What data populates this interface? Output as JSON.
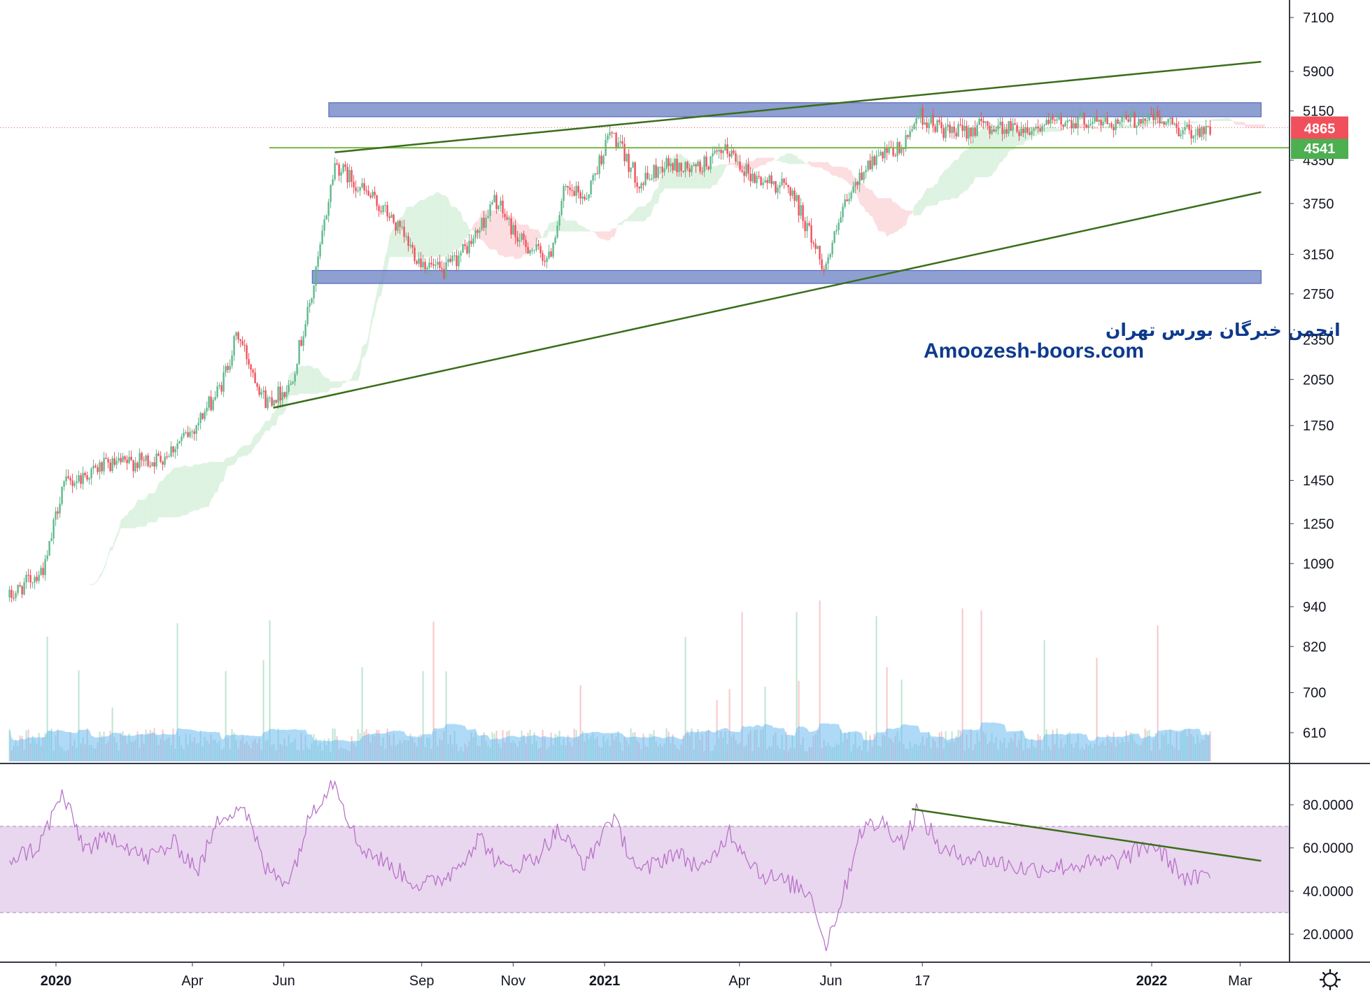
{
  "watermark": {
    "line1": "انجمن خبرگان بورس تهران",
    "line2": "Amoozesh-boors.com"
  },
  "price_badges": {
    "last_price": "4865",
    "level": "4541",
    "last_color": "#f0505c",
    "level_color": "#4caf50"
  },
  "colors": {
    "up": "#5fb88c",
    "down": "#f0505c",
    "zone": "#7b8fca",
    "trendline": "#3a6e1a",
    "rsi": "#b56bc6",
    "rsi_band": "#e9d6ef",
    "cloud_up": "#d8f0dc",
    "cloud_down": "#fbd7da",
    "vol_ma": "#6bbcf3"
  },
  "settings_icon": "gear-icon",
  "chart_data": [
    {
      "type": "candlestick",
      "price_axis": {
        "scale": "log",
        "ticks": [
          "7100",
          "5900",
          "5150",
          "4350",
          "3750",
          "3150",
          "2750",
          "2350",
          "2050",
          "1750",
          "1450",
          "1250",
          "1090",
          "940",
          "820",
          "700",
          "610"
        ]
      },
      "time_axis": {
        "ticks": [
          {
            "label": "2020",
            "bold": true
          },
          {
            "label": "Apr",
            "bold": false
          },
          {
            "label": "Jun",
            "bold": false
          },
          {
            "label": "Sep",
            "bold": false
          },
          {
            "label": "Nov",
            "bold": false
          },
          {
            "label": "2021",
            "bold": true
          },
          {
            "label": "Apr",
            "bold": false
          },
          {
            "label": "Jun",
            "bold": false
          },
          {
            "label": "17",
            "bold": false
          },
          {
            "label": "2022",
            "bold": true
          },
          {
            "label": "Mar",
            "bold": false
          }
        ]
      },
      "close_path": [
        [
          "2019-12-01",
          970
        ],
        [
          "2019-12-25",
          1080
        ],
        [
          "2020-01-05",
          1420
        ],
        [
          "2020-02-01",
          1520
        ],
        [
          "2020-03-10",
          1560
        ],
        [
          "2020-04-01",
          1720
        ],
        [
          "2020-04-20",
          2000
        ],
        [
          "2020-05-01",
          2400
        ],
        [
          "2020-05-20",
          1900
        ],
        [
          "2020-06-05",
          2000
        ],
        [
          "2020-06-20",
          2750
        ],
        [
          "2020-07-05",
          4300
        ],
        [
          "2020-07-20",
          4000
        ],
        [
          "2020-08-10",
          3600
        ],
        [
          "2020-08-30",
          3100
        ],
        [
          "2020-09-15",
          2950
        ],
        [
          "2020-10-05",
          3300
        ],
        [
          "2020-10-20",
          3800
        ],
        [
          "2020-11-05",
          3300
        ],
        [
          "2020-11-25",
          3100
        ],
        [
          "2020-12-05",
          3900
        ],
        [
          "2020-12-20",
          3850
        ],
        [
          "2021-01-05",
          4800
        ],
        [
          "2021-01-25",
          4000
        ],
        [
          "2021-02-10",
          4300
        ],
        [
          "2021-03-01",
          4200
        ],
        [
          "2021-03-25",
          4500
        ],
        [
          "2021-04-10",
          4100
        ],
        [
          "2021-05-05",
          3950
        ],
        [
          "2021-05-20",
          3300
        ],
        [
          "2021-05-28",
          3000
        ],
        [
          "2021-06-10",
          3700
        ],
        [
          "2021-06-25",
          4300
        ],
        [
          "2021-07-20",
          4550
        ],
        [
          "2021-07-28",
          5100
        ],
        [
          "2021-08-20",
          4750
        ],
        [
          "2021-09-10",
          4900
        ],
        [
          "2021-10-10",
          4850
        ],
        [
          "2021-11-10",
          5000
        ],
        [
          "2021-12-10",
          4950
        ],
        [
          "2022-01-01",
          5050
        ],
        [
          "2022-01-25",
          4800
        ],
        [
          "2022-02-10",
          4865
        ]
      ],
      "horizontal_levels": [
        {
          "value": 4541,
          "color": "#7ab648"
        }
      ],
      "zones": [
        {
          "name": "resistance-zone",
          "from": "2020-07-01",
          "to": "2022-03-15",
          "low": 5050,
          "high": 5300
        },
        {
          "name": "support-zone",
          "from": "2020-06-20",
          "to": "2022-03-15",
          "low": 2850,
          "high": 2980
        }
      ],
      "trendlines": [
        {
          "from": [
            "2020-07-05",
            4470
          ],
          "to": [
            "2022-03-15",
            6100
          ]
        },
        {
          "from": [
            "2020-05-25",
            1860
          ],
          "to": [
            "2022-03-15",
            3900
          ]
        }
      ],
      "volume": {
        "note": "volume histogram with moving-average area"
      },
      "ichimoku_cloud": true
    },
    {
      "type": "line",
      "name": "RSI",
      "y_ticks": [
        "80.0000",
        "60.0000",
        "40.0000",
        "20.0000"
      ],
      "band": [
        30,
        70
      ],
      "path": [
        [
          "2019-12-01",
          55
        ],
        [
          "2019-12-20",
          60
        ],
        [
          "2020-01-05",
          85
        ],
        [
          "2020-01-20",
          60
        ],
        [
          "2020-02-10",
          65
        ],
        [
          "2020-03-01",
          55
        ],
        [
          "2020-03-20",
          62
        ],
        [
          "2020-04-05",
          50
        ],
        [
          "2020-04-20",
          75
        ],
        [
          "2020-05-05",
          80
        ],
        [
          "2020-05-20",
          50
        ],
        [
          "2020-06-05",
          45
        ],
        [
          "2020-06-20",
          78
        ],
        [
          "2020-07-05",
          92
        ],
        [
          "2020-07-20",
          62
        ],
        [
          "2020-08-10",
          52
        ],
        [
          "2020-09-01",
          42
        ],
        [
          "2020-09-20",
          48
        ],
        [
          "2020-10-10",
          65
        ],
        [
          "2020-10-25",
          50
        ],
        [
          "2020-11-15",
          55
        ],
        [
          "2020-12-01",
          68
        ],
        [
          "2020-12-20",
          52
        ],
        [
          "2021-01-05",
          75
        ],
        [
          "2021-01-25",
          48
        ],
        [
          "2021-02-15",
          58
        ],
        [
          "2021-03-10",
          50
        ],
        [
          "2021-03-25",
          68
        ],
        [
          "2021-04-15",
          48
        ],
        [
          "2021-05-10",
          42
        ],
        [
          "2021-05-20",
          38
        ],
        [
          "2021-05-28",
          14
        ],
        [
          "2021-06-10",
          40
        ],
        [
          "2021-06-20",
          68
        ],
        [
          "2021-07-05",
          72
        ],
        [
          "2021-07-20",
          62
        ],
        [
          "2021-07-28",
          78
        ],
        [
          "2021-08-15",
          58
        ],
        [
          "2021-09-10",
          55
        ],
        [
          "2021-10-10",
          50
        ],
        [
          "2021-11-10",
          52
        ],
        [
          "2021-12-10",
          54
        ],
        [
          "2022-01-01",
          62
        ],
        [
          "2022-01-25",
          45
        ],
        [
          "2022-02-10",
          47
        ]
      ],
      "trendline": {
        "from": [
          "2021-07-25",
          78
        ],
        "to": [
          "2022-03-15",
          54
        ]
      }
    }
  ]
}
